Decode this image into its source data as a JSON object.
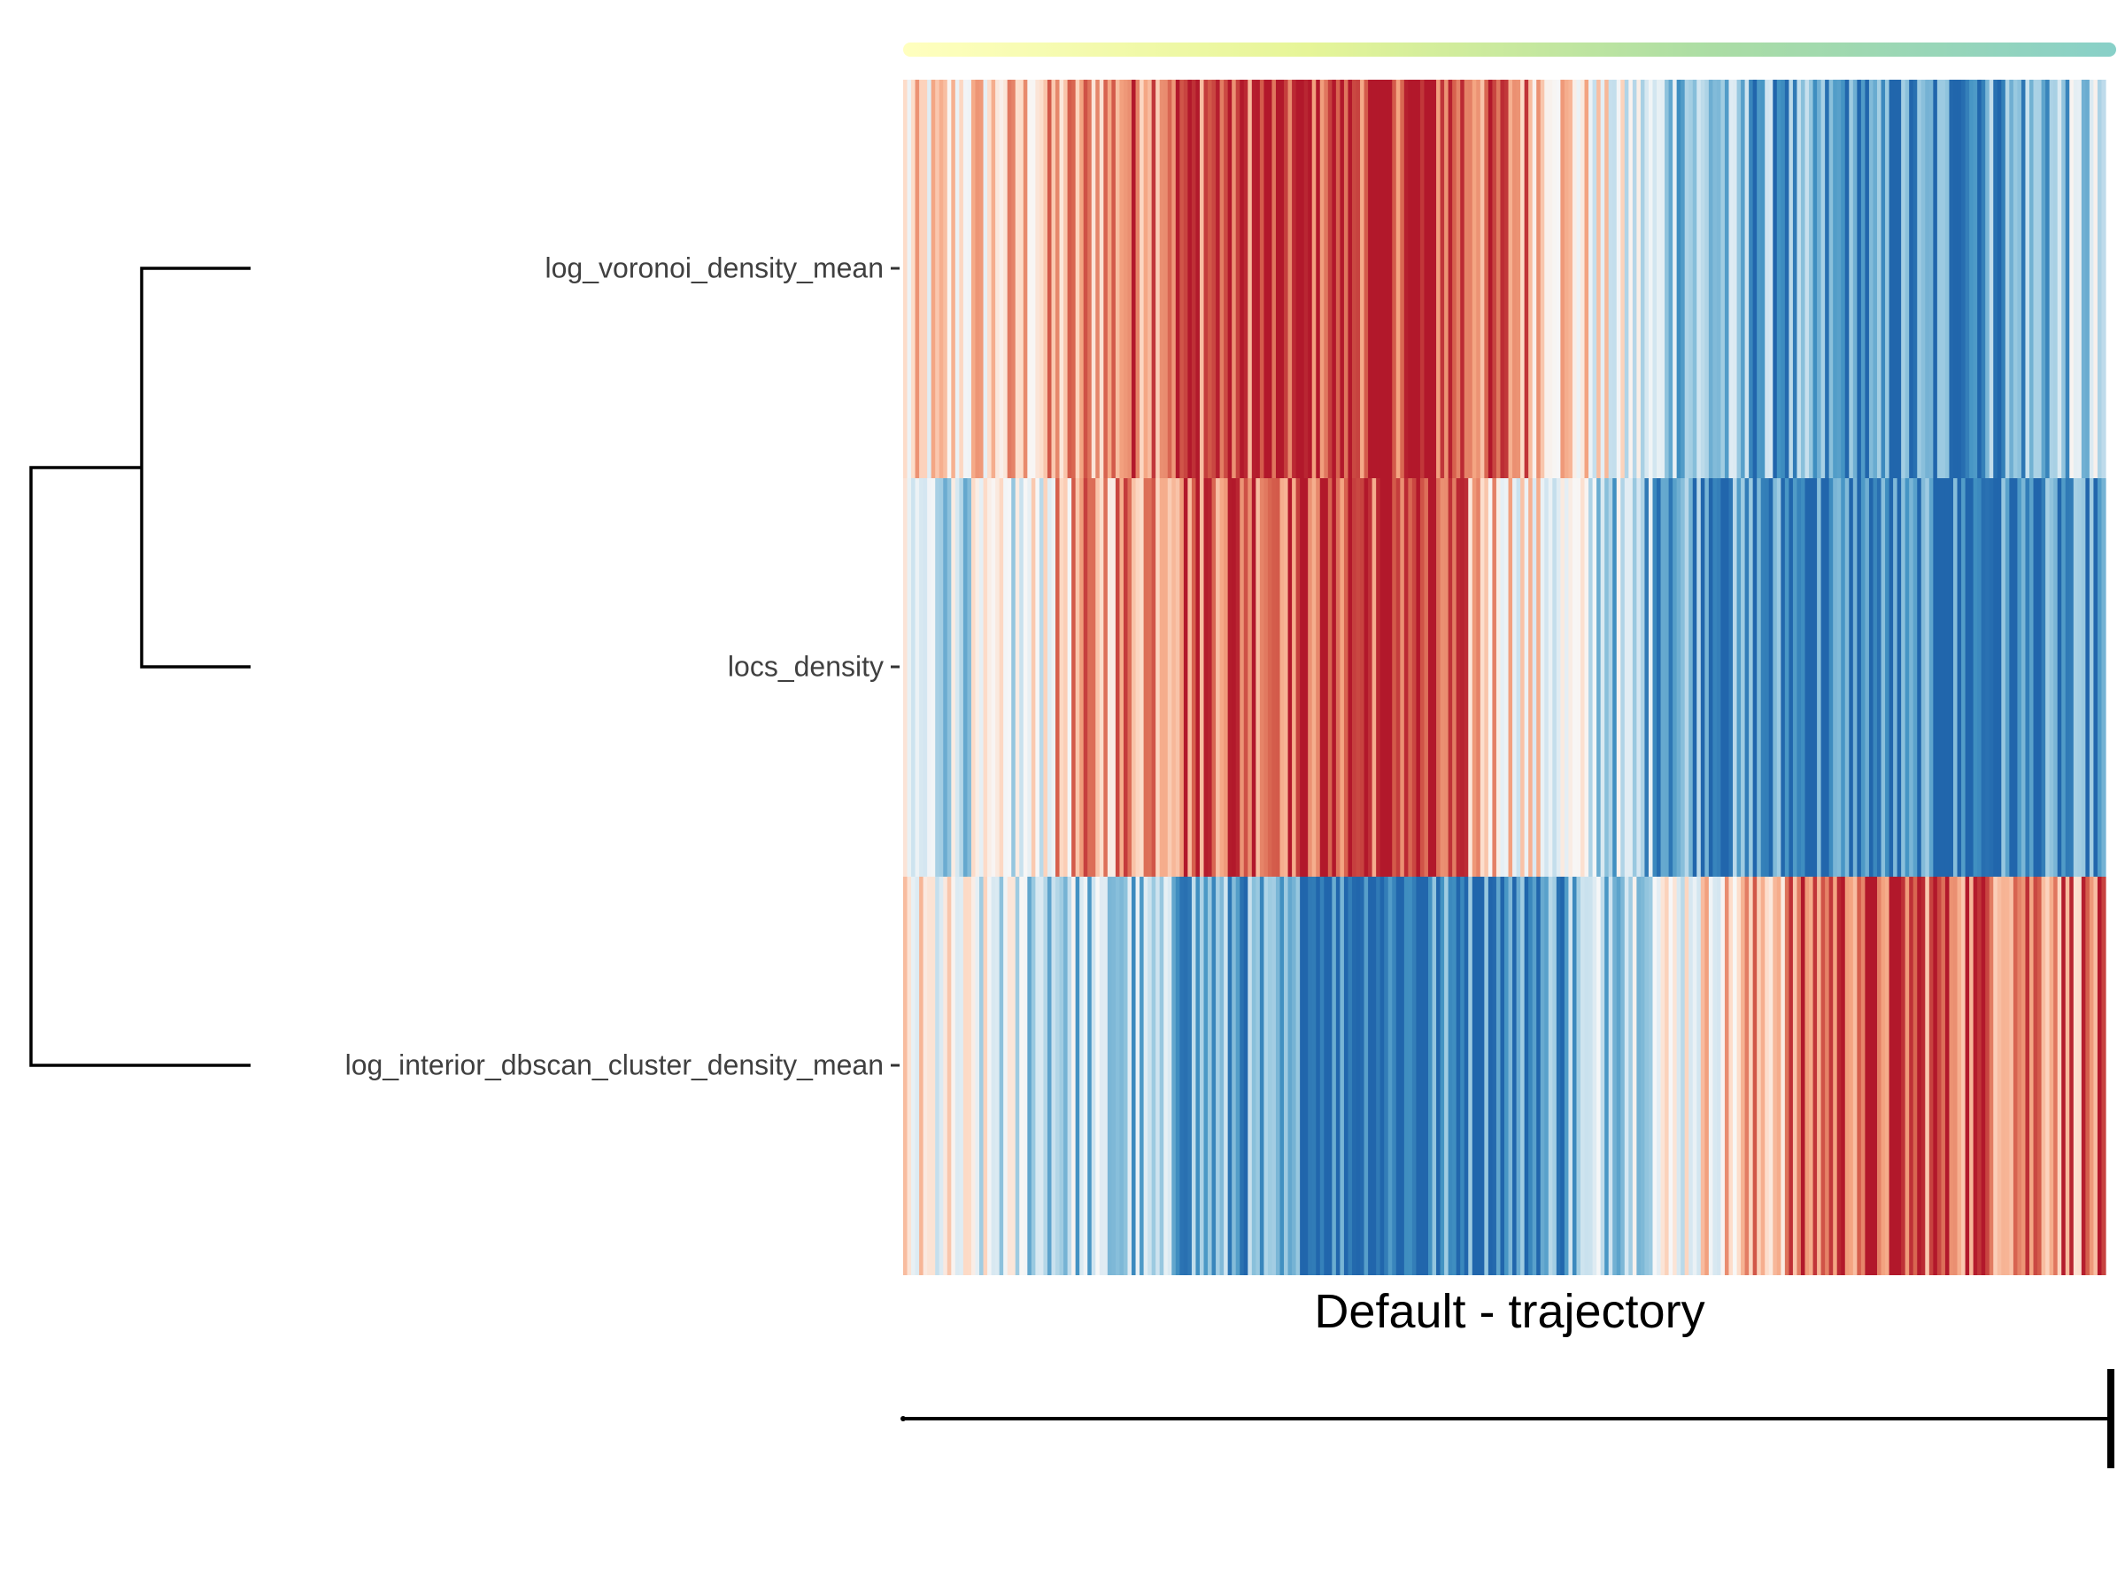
{
  "chart_data": {
    "type": "heatmap",
    "title": "",
    "xlabel": "Default - trajectory",
    "rows": [
      "log_voronoi_density_mean",
      "locs_density",
      "log_interior_dbscan_cluster_density_mean"
    ],
    "row_dendrogram": {
      "merges": [
        {
          "left": "log_voronoi_density_mean",
          "right": "locs_density"
        },
        {
          "left": "cluster(log_voronoi_density_mean, locs_density)",
          "right": "log_interior_dbscan_cluster_density_mean"
        }
      ]
    },
    "column_count": 300,
    "columns_labeled": false,
    "color_scale": {
      "name": "RdBu (reversed)",
      "low": "#2166ac",
      "mid": "#f7f7f7",
      "high": "#b2182b",
      "range": [
        -1,
        1
      ]
    },
    "row_trends": [
      {
        "row": "log_voronoi_density_mean",
        "anchors": [
          [
            0.0,
            0.1
          ],
          [
            0.12,
            0.35
          ],
          [
            0.22,
            0.8
          ],
          [
            0.42,
            0.95
          ],
          [
            0.52,
            0.55
          ],
          [
            0.6,
            -0.15
          ],
          [
            0.7,
            -0.6
          ],
          [
            0.8,
            -0.85
          ],
          [
            0.9,
            -0.7
          ],
          [
            1.0,
            -0.3
          ]
        ]
      },
      {
        "row": "locs_density",
        "anchors": [
          [
            0.0,
            -0.25
          ],
          [
            0.1,
            -0.15
          ],
          [
            0.13,
            0.35
          ],
          [
            0.25,
            0.8
          ],
          [
            0.42,
            0.9
          ],
          [
            0.52,
            0.1
          ],
          [
            0.6,
            -0.4
          ],
          [
            0.7,
            -0.8
          ],
          [
            0.85,
            -0.9
          ],
          [
            1.0,
            -0.85
          ]
        ]
      },
      {
        "row": "log_interior_dbscan_cluster_density_mean",
        "anchors": [
          [
            0.0,
            0.05
          ],
          [
            0.1,
            -0.25
          ],
          [
            0.25,
            -0.6
          ],
          [
            0.35,
            -0.9
          ],
          [
            0.52,
            -0.8
          ],
          [
            0.6,
            -0.2
          ],
          [
            0.68,
            0.2
          ],
          [
            0.78,
            0.8
          ],
          [
            0.9,
            0.75
          ],
          [
            1.0,
            0.6
          ]
        ]
      }
    ],
    "noise_amplitude": 0.45,
    "column_annotation": {
      "gradient": [
        "#ffffbf",
        "#e6f598",
        "#abdda4",
        "#88d0c8"
      ]
    },
    "pseudotime_axis": {
      "shown": true
    }
  }
}
